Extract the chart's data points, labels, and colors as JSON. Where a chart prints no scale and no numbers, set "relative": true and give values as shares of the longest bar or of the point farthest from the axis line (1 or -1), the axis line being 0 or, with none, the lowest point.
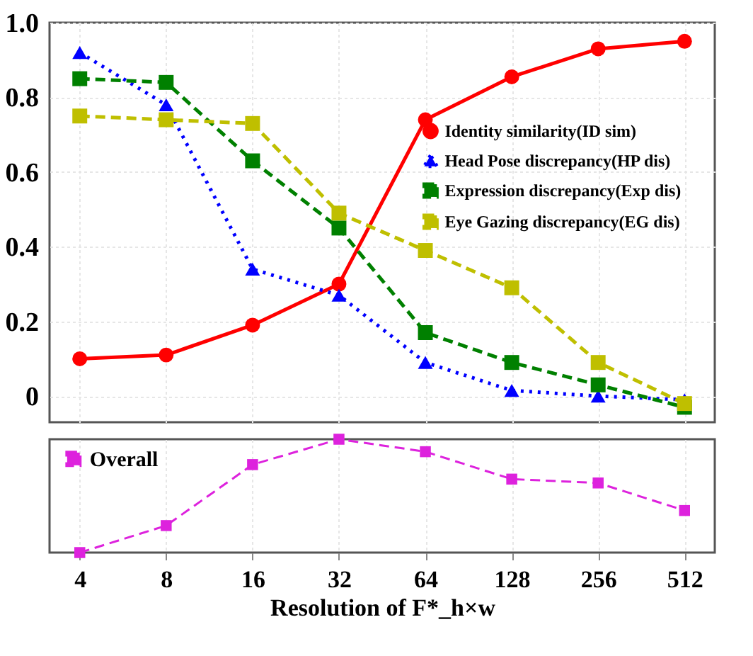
{
  "chart_data": [
    {
      "type": "line",
      "categories": [
        "4",
        "8",
        "16",
        "32",
        "64",
        "128",
        "256",
        "512"
      ],
      "ylim": [
        -0.07,
        1.0
      ],
      "yticks": [
        {
          "value": 0,
          "label": "0"
        },
        0.2,
        0.4,
        0.6,
        0.8,
        {
          "value": 1.0,
          "label": "1.0"
        }
      ],
      "grid": true,
      "legend": "right",
      "tick_labels": "y",
      "series": [
        {
          "name": "Identity similarity(ID sim)",
          "color": "#ff0000",
          "marker": "circle",
          "line_style": "solid",
          "values": [
            0.1,
            0.11,
            0.19,
            0.3,
            0.74,
            0.855,
            0.93,
            0.95
          ]
        },
        {
          "name": "Head Pose discrepancy(HP dis)",
          "color": "#0000ff",
          "marker": "triangle",
          "line_style": "dotted",
          "values": [
            0.92,
            0.78,
            0.34,
            0.27,
            0.09,
            0.015,
            0.0,
            -0.01
          ]
        },
        {
          "name": "Expression discrepancy(Exp dis)",
          "color": "#008000",
          "marker": "square",
          "line_style": "dashed",
          "values": [
            0.85,
            0.84,
            0.63,
            0.45,
            0.17,
            0.09,
            0.03,
            -0.03
          ]
        },
        {
          "name": "Eye Gazing discrepancy(EG dis)",
          "color": "#bfbf00",
          "marker": "square",
          "line_style": "dashed",
          "values": [
            0.75,
            0.74,
            0.73,
            0.49,
            0.39,
            0.29,
            0.09,
            -0.02
          ]
        }
      ]
    },
    {
      "type": "line",
      "categories": [
        "4",
        "8",
        "16",
        "32",
        "64",
        "128",
        "256",
        "512"
      ],
      "relative": true,
      "grid": "x",
      "legend": "top left",
      "tick_labels": "x",
      "xlabel": "Resolution of F*_h×w",
      "series": [
        {
          "name": "Overall",
          "color": "#dd22dd",
          "marker": "square",
          "line_style": "dashed",
          "values": [
            0,
            0.238,
            0.776,
            1,
            0.89,
            0.648,
            0.614,
            0.371
          ]
        }
      ]
    }
  ]
}
